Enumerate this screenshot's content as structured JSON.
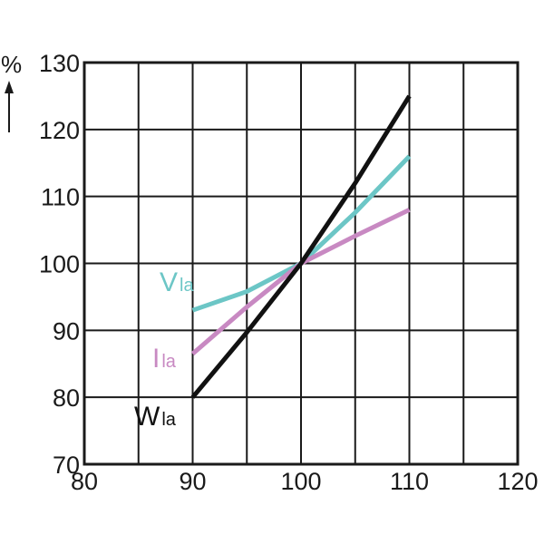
{
  "chart_data": {
    "type": "line",
    "title": "",
    "xlabel": "",
    "ylabel": "%",
    "xlim": [
      80,
      120
    ],
    "ylim": [
      70,
      130
    ],
    "x_ticks": [
      "80",
      "90",
      "100",
      "110",
      "120"
    ],
    "y_ticks": [
      "70",
      "80",
      "90",
      "100",
      "110",
      "120",
      "130"
    ],
    "grid": true,
    "legend": "none",
    "series": [
      {
        "label_main": "V",
        "label_sub": "la",
        "color": "#6cc6c6",
        "points": [
          [
            90,
            93
          ],
          [
            95,
            95.8
          ],
          [
            100,
            100
          ],
          [
            105,
            107.6
          ],
          [
            110,
            116
          ]
        ]
      },
      {
        "label_main": "I",
        "label_sub": "la",
        "color": "#c889c2",
        "points": [
          [
            90,
            86.5
          ],
          [
            95,
            93.5
          ],
          [
            100,
            100
          ],
          [
            105,
            104.1
          ],
          [
            110,
            108
          ]
        ]
      },
      {
        "label_main": "W",
        "label_sub": "la",
        "color": "#111111",
        "points": [
          [
            90,
            80
          ],
          [
            95,
            89.7
          ],
          [
            100,
            100
          ],
          [
            105,
            112
          ],
          [
            110,
            125
          ]
        ]
      }
    ]
  },
  "colors": {
    "axis": "#1a1a1a",
    "grid": "#1a1a1a"
  }
}
